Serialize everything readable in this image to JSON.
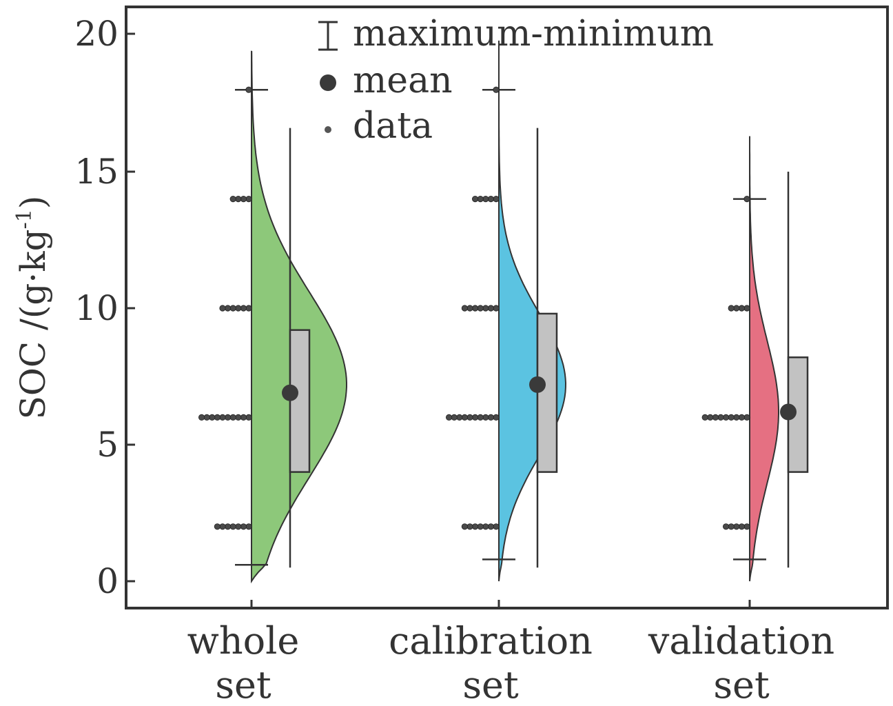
{
  "chart_data": {
    "type": "raincloud",
    "title": "",
    "xlabel": "",
    "ylabel": "SOC /(g·kg⁻¹)",
    "ylabel_parts": {
      "main": "SOC /(g·kg",
      "superscript": "-1",
      "close": ")"
    },
    "ylim": [
      0,
      21
    ],
    "yticks": [
      0,
      5,
      10,
      15,
      20
    ],
    "legend": {
      "position": "top-center",
      "items": [
        {
          "marker": "errorbar",
          "label": "maximum-minimum"
        },
        {
          "marker": "large-dot",
          "label": "mean"
        },
        {
          "marker": "small-dot",
          "label": "data"
        }
      ]
    },
    "groups": [
      {
        "name": "whole set",
        "label_lines": [
          "whole",
          "set"
        ],
        "color": "#8DC87A",
        "min": 0.6,
        "max": 18,
        "mean": 6.9,
        "q1": 4,
        "q3": 9.2,
        "whisker_low": 0.5,
        "whisker_high": 16.6,
        "kde_peak": 7.2,
        "kde_sd": 3.4,
        "kde_range": [
          0,
          19.4
        ],
        "data_levels": [
          {
            "y": 2,
            "count": 7
          },
          {
            "y": 6,
            "count": 10
          },
          {
            "y": 10,
            "count": 6
          },
          {
            "y": 14,
            "count": 4
          },
          {
            "y": 18,
            "count": 1
          }
        ]
      },
      {
        "name": "calibration set",
        "label_lines": [
          "calibration",
          "set"
        ],
        "color": "#5BC3E1",
        "min": 0.8,
        "max": 18,
        "mean": 7.2,
        "q1": 4,
        "q3": 9.8,
        "whisker_low": 0.5,
        "whisker_high": 16.6,
        "kde_peak": 7.2,
        "kde_sd": 2.6,
        "kde_range": [
          0,
          19.8
        ],
        "data_levels": [
          {
            "y": 2,
            "count": 7
          },
          {
            "y": 6,
            "count": 10
          },
          {
            "y": 10,
            "count": 7
          },
          {
            "y": 14,
            "count": 5
          },
          {
            "y": 18,
            "count": 1
          }
        ]
      },
      {
        "name": "validation set",
        "label_lines": [
          "validation",
          "set"
        ],
        "color": "#E57082",
        "min": 0.8,
        "max": 14,
        "mean": 6.2,
        "q1": 4,
        "q3": 8.2,
        "whisker_low": 0.5,
        "whisker_high": 15,
        "kde_peak": 6.2,
        "kde_sd": 2.6,
        "kde_range": [
          0,
          16.3
        ],
        "data_levels": [
          {
            "y": 2,
            "count": 5
          },
          {
            "y": 6,
            "count": 9
          },
          {
            "y": 10,
            "count": 4
          },
          {
            "y": 14,
            "count": 1
          }
        ]
      }
    ]
  },
  "colors": {
    "axis": "#333333",
    "box_fill": "#C2C2C2",
    "mark": "#3A3A3A"
  }
}
